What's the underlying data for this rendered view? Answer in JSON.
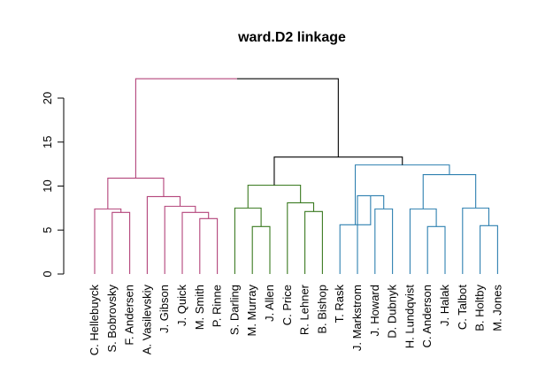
{
  "chart_data": {
    "type": "dendrogram",
    "title": "ward.D2 linkage",
    "xlabel": "",
    "ylabel": "",
    "ylim": [
      0,
      22.5
    ],
    "y_ticks": [
      0,
      5,
      10,
      15,
      20
    ],
    "grid": false,
    "colors": {
      "cluster_magenta": "#B3437A",
      "cluster_green": "#3A7A20",
      "cluster_blue": "#2E80B0",
      "root": "#000000"
    },
    "leaves": [
      "C. Hellebuyck",
      "S. Bobrovsky",
      "F. Andersen",
      "A. Vasilevskiy",
      "J. Gibson",
      "J. Quick",
      "M. Smith",
      "P. Rinne",
      "S. Darling",
      "M. Murray",
      "J. Allen",
      "C. Price",
      "R. Lehner",
      "B. Bishop",
      "T. Rask",
      "J. Markstrom",
      "J. Howard",
      "D. Dubnyk",
      "H. Lundqvist",
      "C. Anderson",
      "J. Halak",
      "C. Talbot",
      "B. Holtby",
      "M. Jones"
    ],
    "merges": [
      {
        "left": "S. Bobrovsky",
        "right": "F. Andersen",
        "height": 7.0,
        "color": "cluster_magenta"
      },
      {
        "left": "C. Hellebuyck",
        "right": "m1",
        "height": 7.4,
        "color": "cluster_magenta"
      },
      {
        "left": "M. Smith",
        "right": "P. Rinne",
        "height": 6.3,
        "color": "cluster_magenta"
      },
      {
        "left": "J. Quick",
        "right": "m3",
        "height": 7.0,
        "color": "cluster_magenta"
      },
      {
        "left": "J. Gibson",
        "right": "m4",
        "height": 7.7,
        "color": "cluster_magenta"
      },
      {
        "left": "A. Vasilevskiy",
        "right": "m5",
        "height": 8.8,
        "color": "cluster_magenta"
      },
      {
        "left": "m2",
        "right": "m6",
        "height": 10.9,
        "color": "cluster_magenta"
      },
      {
        "left": "M. Murray",
        "right": "J. Allen",
        "height": 5.4,
        "color": "cluster_green"
      },
      {
        "left": "S. Darling",
        "right": "m8",
        "height": 7.5,
        "color": "cluster_green"
      },
      {
        "left": "R. Lehner",
        "right": "B. Bishop",
        "height": 7.1,
        "color": "cluster_green"
      },
      {
        "left": "C. Price",
        "right": "m10",
        "height": 8.1,
        "color": "cluster_green"
      },
      {
        "left": "m9",
        "right": "m11",
        "height": 10.1,
        "color": "cluster_green"
      },
      {
        "left": "J. Howard",
        "right": "D. Dubnyk",
        "height": 7.4,
        "color": "cluster_blue"
      },
      {
        "left": "J. Markstrom",
        "right": "m13",
        "height": 8.9,
        "color": "cluster_blue"
      },
      {
        "left": "T. Rask",
        "right": "m14",
        "height": 5.6,
        "color": "cluster_blue"
      },
      {
        "left": "C. Anderson",
        "right": "J. Halak",
        "height": 5.4,
        "color": "cluster_blue"
      },
      {
        "left": "H. Lundqvist",
        "right": "m16",
        "height": 7.4,
        "color": "cluster_blue"
      },
      {
        "left": "B. Holtby",
        "right": "M. Jones",
        "height": 5.5,
        "color": "cluster_blue"
      },
      {
        "left": "C. Talbot",
        "right": "m18",
        "height": 7.5,
        "color": "cluster_blue"
      },
      {
        "left": "m17",
        "right": "m19",
        "height": 11.3,
        "color": "cluster_blue"
      },
      {
        "left": "m15",
        "right": "m20",
        "height": 12.4,
        "color": "cluster_blue"
      },
      {
        "left": "m12",
        "right": "m21",
        "height": 13.3,
        "color": "root"
      },
      {
        "left": "m7",
        "right": "m22",
        "height": 22.2,
        "color": "root"
      }
    ]
  }
}
